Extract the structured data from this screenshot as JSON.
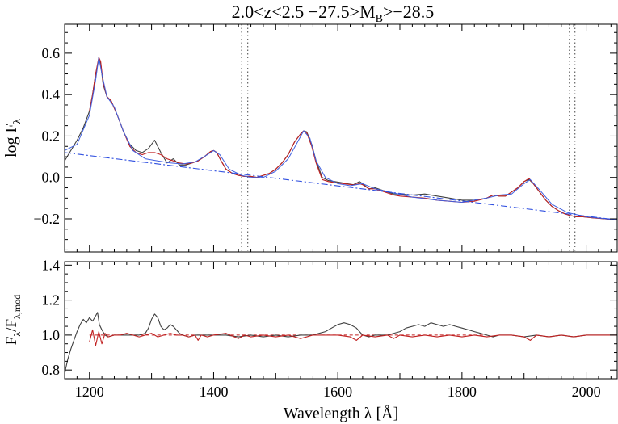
{
  "chart_data": [
    {
      "type": "line",
      "title": "2.0<z<2.5 −27.5>M",
      "title_sub": "B",
      "title_tail": ">−28.5",
      "xlabel": "Wavelength λ [Å]",
      "ylabel": "log F",
      "ylabel_sub": "λ",
      "xlim": [
        1160,
        2050
      ],
      "ylim": [
        -0.36,
        0.74
      ],
      "xticks": [
        1200,
        1400,
        1600,
        1800,
        2000
      ],
      "xtick_labels": [
        "",
        "",
        "",
        "",
        ""
      ],
      "yticks": [
        -0.2,
        0.0,
        0.2,
        0.4,
        0.6
      ],
      "ytick_labels": [
        "−0.2",
        "0.0",
        "0.2",
        "0.4",
        "0.6"
      ],
      "vlines": [
        1445,
        1455,
        1973,
        1982
      ],
      "colors": {
        "spectrum": "#404040",
        "model": "#c02020",
        "fit": "#4060e0",
        "continuum": "#3050e0"
      },
      "series": [
        {
          "key": "spectrum",
          "style": "solid",
          "x": [
            1160,
            1170,
            1180,
            1190,
            1200,
            1205,
            1210,
            1215,
            1218,
            1222,
            1228,
            1235,
            1245,
            1255,
            1265,
            1275,
            1285,
            1295,
            1305,
            1315,
            1325,
            1335,
            1345,
            1355,
            1365,
            1375,
            1385,
            1395,
            1400,
            1405,
            1412,
            1420,
            1430,
            1440,
            1450,
            1460,
            1470,
            1480,
            1490,
            1500,
            1510,
            1520,
            1530,
            1540,
            1545,
            1550,
            1558,
            1565,
            1575,
            1585,
            1595,
            1605,
            1615,
            1625,
            1635,
            1640,
            1650,
            1660,
            1670,
            1680,
            1690,
            1700,
            1720,
            1740,
            1760,
            1780,
            1800,
            1820,
            1840,
            1850,
            1860,
            1870,
            1880,
            1890,
            1900,
            1908,
            1915,
            1925,
            1935,
            1945,
            1955,
            1965,
            1975,
            1985,
            1995,
            2010,
            2030,
            2050
          ],
          "y": [
            0.08,
            0.13,
            0.18,
            0.24,
            0.32,
            0.4,
            0.5,
            0.57,
            0.55,
            0.45,
            0.39,
            0.37,
            0.3,
            0.22,
            0.16,
            0.13,
            0.12,
            0.14,
            0.18,
            0.12,
            0.07,
            0.09,
            0.06,
            0.06,
            0.07,
            0.08,
            0.1,
            0.125,
            0.13,
            0.12,
            0.08,
            0.04,
            0.02,
            0.01,
            0.005,
            0.005,
            0.0,
            0.01,
            0.02,
            0.04,
            0.07,
            0.11,
            0.17,
            0.21,
            0.225,
            0.22,
            0.16,
            0.08,
            0.0,
            -0.015,
            -0.02,
            -0.025,
            -0.03,
            -0.035,
            -0.02,
            -0.03,
            -0.055,
            -0.05,
            -0.06,
            -0.07,
            -0.08,
            -0.08,
            -0.085,
            -0.08,
            -0.09,
            -0.1,
            -0.11,
            -0.11,
            -0.1,
            -0.085,
            -0.09,
            -0.09,
            -0.07,
            -0.05,
            -0.02,
            -0.01,
            -0.03,
            -0.07,
            -0.11,
            -0.14,
            -0.16,
            -0.175,
            -0.185,
            -0.19,
            -0.19,
            -0.195,
            -0.2,
            -0.205
          ]
        },
        {
          "key": "model",
          "style": "solid",
          "x": [
            1200,
            1205,
            1210,
            1215,
            1218,
            1222,
            1228,
            1235,
            1245,
            1255,
            1265,
            1275,
            1285,
            1295,
            1305,
            1315,
            1325,
            1335,
            1345,
            1355,
            1365,
            1375,
            1385,
            1395,
            1400,
            1405,
            1412,
            1420,
            1430,
            1440,
            1450,
            1460,
            1470,
            1480,
            1490,
            1500,
            1510,
            1520,
            1530,
            1540,
            1545,
            1550,
            1558,
            1565,
            1575,
            1585,
            1595,
            1605,
            1615,
            1625,
            1635,
            1640,
            1650,
            1660,
            1670,
            1680,
            1690,
            1700,
            1720,
            1740,
            1760,
            1780,
            1800,
            1820,
            1840,
            1850,
            1860,
            1870,
            1880,
            1890,
            1900,
            1908,
            1915,
            1925,
            1935,
            1945,
            1955,
            1965,
            1975,
            1985,
            1995,
            2010,
            2030,
            2050
          ],
          "y": [
            0.32,
            0.4,
            0.5,
            0.58,
            0.56,
            0.46,
            0.39,
            0.37,
            0.3,
            0.22,
            0.15,
            0.12,
            0.11,
            0.12,
            0.12,
            0.11,
            0.09,
            0.08,
            0.07,
            0.065,
            0.07,
            0.08,
            0.1,
            0.125,
            0.13,
            0.12,
            0.08,
            0.04,
            0.02,
            0.01,
            0.005,
            0.005,
            0.0,
            0.01,
            0.02,
            0.04,
            0.07,
            0.11,
            0.17,
            0.21,
            0.225,
            0.215,
            0.15,
            0.07,
            -0.01,
            -0.02,
            -0.025,
            -0.028,
            -0.032,
            -0.036,
            -0.03,
            -0.035,
            -0.055,
            -0.055,
            -0.065,
            -0.075,
            -0.085,
            -0.09,
            -0.095,
            -0.1,
            -0.11,
            -0.115,
            -0.12,
            -0.115,
            -0.1,
            -0.085,
            -0.09,
            -0.09,
            -0.07,
            -0.05,
            -0.02,
            -0.005,
            -0.03,
            -0.07,
            -0.11,
            -0.14,
            -0.16,
            -0.175,
            -0.185,
            -0.19,
            -0.19,
            -0.195,
            -0.2,
            -0.205
          ]
        },
        {
          "key": "fit",
          "style": "solid",
          "x": [
            1160,
            1180,
            1200,
            1210,
            1215,
            1220,
            1228,
            1240,
            1255,
            1270,
            1290,
            1310,
            1330,
            1350,
            1370,
            1390,
            1400,
            1410,
            1425,
            1445,
            1460,
            1480,
            1500,
            1520,
            1535,
            1545,
            1555,
            1565,
            1580,
            1600,
            1620,
            1640,
            1660,
            1690,
            1720,
            1760,
            1800,
            1840,
            1860,
            1880,
            1900,
            1910,
            1925,
            1945,
            1970,
            2000,
            2050
          ],
          "y": [
            0.13,
            0.16,
            0.3,
            0.47,
            0.58,
            0.5,
            0.39,
            0.34,
            0.22,
            0.13,
            0.09,
            0.08,
            0.07,
            0.065,
            0.075,
            0.11,
            0.13,
            0.11,
            0.04,
            0.01,
            0.0,
            0.0,
            0.03,
            0.09,
            0.17,
            0.225,
            0.19,
            0.08,
            0.0,
            -0.03,
            -0.04,
            -0.03,
            -0.055,
            -0.075,
            -0.095,
            -0.11,
            -0.12,
            -0.1,
            -0.085,
            -0.08,
            -0.03,
            -0.01,
            -0.06,
            -0.13,
            -0.17,
            -0.19,
            -0.205
          ]
        },
        {
          "key": "continuum",
          "style": "dashdot",
          "x": [
            1160,
            2050
          ],
          "y": [
            0.12,
            -0.205
          ]
        }
      ]
    },
    {
      "type": "line",
      "title": "",
      "xlabel": "Wavelength λ [Å]",
      "ylabel": "F",
      "ylabel_sub": "λ",
      "ylabel_mid": "/F",
      "ylabel_sub2": "λ,mod",
      "xlim": [
        1160,
        2050
      ],
      "ylim": [
        0.75,
        1.42
      ],
      "xticks": [
        1200,
        1400,
        1600,
        1800,
        2000
      ],
      "xtick_labels": [
        "1200",
        "1400",
        "1600",
        "1800",
        "2000"
      ],
      "yticks": [
        0.8,
        1.0,
        1.2,
        1.4
      ],
      "ytick_labels": [
        "0.8",
        "1.0",
        "1.2",
        "1.4"
      ],
      "reference_line": {
        "x": [
          1200,
          1840
        ],
        "y": 1.0
      },
      "series": [
        {
          "key": "spectrum",
          "style": "solid",
          "x": [
            1160,
            1165,
            1170,
            1175,
            1180,
            1185,
            1190,
            1195,
            1200,
            1205,
            1210,
            1213,
            1216,
            1220,
            1225,
            1230,
            1240,
            1250,
            1260,
            1270,
            1280,
            1290,
            1295,
            1300,
            1305,
            1310,
            1315,
            1320,
            1325,
            1330,
            1335,
            1340,
            1345,
            1350,
            1360,
            1370,
            1380,
            1390,
            1400,
            1420,
            1440,
            1460,
            1480,
            1500,
            1520,
            1540,
            1560,
            1570,
            1580,
            1590,
            1600,
            1610,
            1620,
            1630,
            1640,
            1650,
            1660,
            1680,
            1700,
            1710,
            1720,
            1730,
            1740,
            1750,
            1760,
            1770,
            1780,
            1790,
            1800,
            1810,
            1820,
            1830,
            1840,
            1850,
            1860,
            1880,
            1900,
            1920,
            1940,
            1960,
            1980,
            2000,
            2020,
            2050
          ],
          "y": [
            0.78,
            0.86,
            0.92,
            0.97,
            1.02,
            1.06,
            1.09,
            1.07,
            1.1,
            1.08,
            1.11,
            1.13,
            1.06,
            1.03,
            1.0,
            0.99,
            1.0,
            1.0,
            1.0,
            1.0,
            1.0,
            1.01,
            1.04,
            1.09,
            1.12,
            1.1,
            1.05,
            1.03,
            1.04,
            1.06,
            1.05,
            1.03,
            1.01,
            1.0,
            0.99,
            1.0,
            1.0,
            1.0,
            1.0,
            1.0,
            0.99,
            1.0,
            0.99,
            1.0,
            0.99,
            1.0,
            1.0,
            1.01,
            1.02,
            1.04,
            1.06,
            1.07,
            1.06,
            1.04,
            1.0,
            0.99,
            1.0,
            1.0,
            1.02,
            1.04,
            1.05,
            1.06,
            1.05,
            1.07,
            1.06,
            1.05,
            1.06,
            1.05,
            1.04,
            1.03,
            1.02,
            1.01,
            1.0,
            0.99,
            1.0,
            1.0,
            0.99,
            1.0,
            0.99,
            1.0,
            0.99,
            1.0,
            1.0,
            1.0
          ]
        },
        {
          "key": "model",
          "style": "solid",
          "x": [
            1200,
            1205,
            1210,
            1215,
            1220,
            1225,
            1230,
            1240,
            1250,
            1260,
            1270,
            1280,
            1290,
            1300,
            1310,
            1320,
            1330,
            1340,
            1350,
            1360,
            1370,
            1375,
            1380,
            1390,
            1400,
            1420,
            1440,
            1450,
            1460,
            1480,
            1500,
            1520,
            1540,
            1560,
            1580,
            1600,
            1620,
            1630,
            1640,
            1660,
            1680,
            1690,
            1700,
            1720,
            1740,
            1760,
            1780,
            1800,
            1820,
            1840,
            1860,
            1880,
            1900,
            1910,
            1920,
            1940,
            1960,
            1980,
            2000,
            2020,
            2050
          ],
          "y": [
            0.96,
            1.03,
            0.94,
            1.02,
            0.95,
            1.01,
            0.99,
            1.0,
            1.0,
            1.01,
            1.0,
            0.99,
            1.0,
            1.01,
            0.99,
            1.0,
            1.01,
            1.0,
            1.0,
            0.99,
            1.0,
            0.97,
            1.0,
            0.99,
            1.0,
            1.01,
            0.98,
            1.0,
            0.99,
            1.0,
            0.99,
            1.0,
            0.98,
            1.0,
            1.0,
            1.0,
            0.99,
            0.97,
            1.0,
            0.99,
            1.0,
            0.98,
            1.0,
            0.99,
            1.0,
            0.99,
            1.0,
            0.99,
            1.0,
            0.99,
            1.0,
            1.0,
            0.99,
            0.97,
            1.0,
            0.99,
            1.0,
            0.99,
            1.0,
            1.0,
            1.0
          ]
        }
      ]
    }
  ]
}
